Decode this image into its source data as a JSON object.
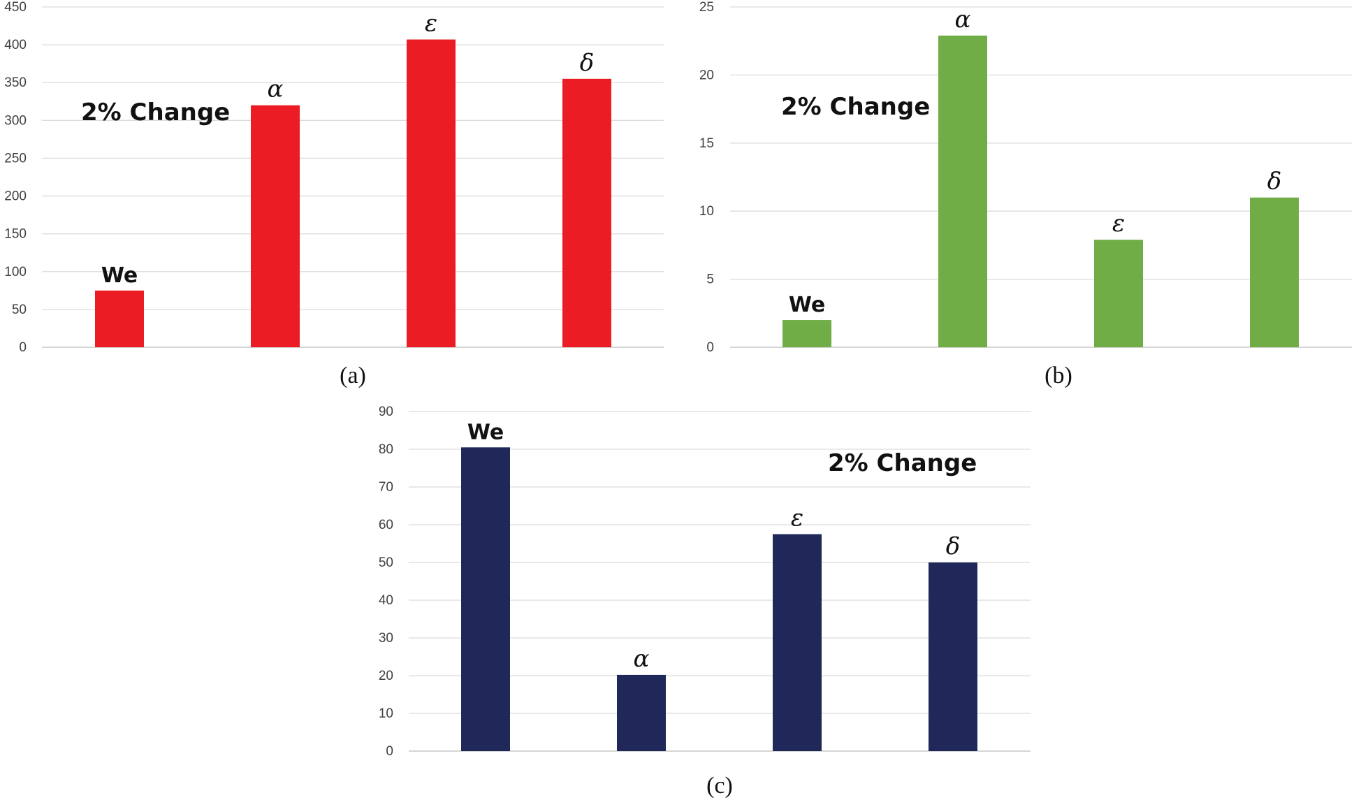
{
  "chart_data": [
    {
      "panel": "a",
      "type": "bar",
      "caption": "(a)",
      "annotation": "2% Change",
      "categories": [
        "We",
        "α",
        "ε",
        "δ"
      ],
      "values": [
        75,
        320,
        407,
        355
      ],
      "ylim": [
        0,
        450
      ],
      "yticks": [
        0,
        50,
        100,
        150,
        200,
        250,
        300,
        350,
        400,
        450
      ],
      "color": "#ec1c24",
      "grid": true,
      "legend": "none"
    },
    {
      "panel": "b",
      "type": "bar",
      "caption": "(b)",
      "annotation": "2% Change",
      "categories": [
        "We",
        "α",
        "ε",
        "δ"
      ],
      "values": [
        2,
        22.9,
        7.9,
        11
      ],
      "ylim": [
        0,
        25
      ],
      "yticks": [
        0,
        5,
        10,
        15,
        20,
        25
      ],
      "color": "#70ad47",
      "grid": true,
      "legend": "none"
    },
    {
      "panel": "c",
      "type": "bar",
      "caption": "(c)",
      "annotation": "2% Change",
      "categories": [
        "We",
        "α",
        "ε",
        "δ"
      ],
      "values": [
        80.5,
        20.2,
        57.5,
        50
      ],
      "ylim": [
        0,
        90
      ],
      "yticks": [
        0,
        10,
        20,
        30,
        40,
        50,
        60,
        70,
        80,
        90
      ],
      "color": "#1f2858",
      "grid": true,
      "legend": "none"
    }
  ]
}
